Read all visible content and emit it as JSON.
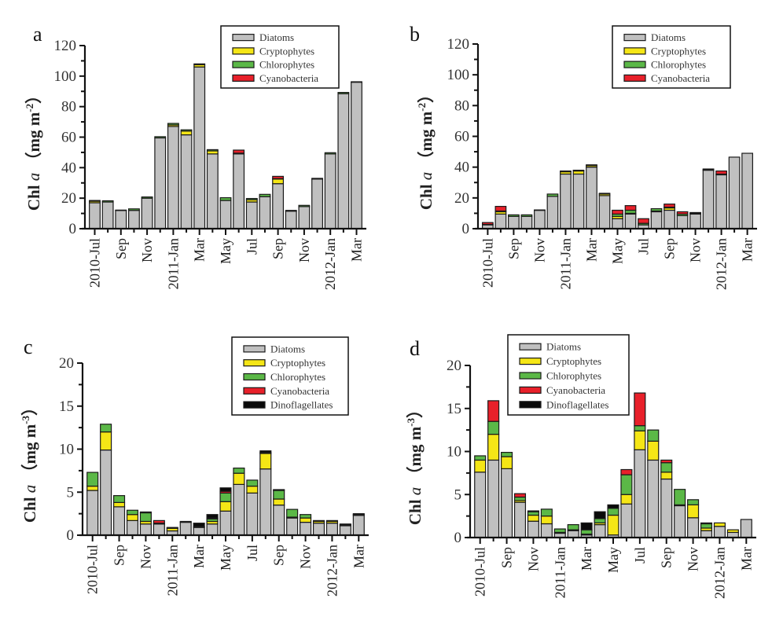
{
  "colors": {
    "Diatoms": "#c0c0c0",
    "Cryptophytes": "#f5e616",
    "Chlorophytes": "#5bb847",
    "Cyanobacteria": "#e8202a",
    "Dinoflagellates": "#0a0a0a"
  },
  "chart_data": [
    {
      "type": "bar",
      "stacked": true,
      "panel": "a",
      "ylabel": "Chl a (mg m-2)",
      "ylabel_parts": {
        "prefix": "Chl ",
        "italic": "a",
        "unit": "（mg m",
        "sup": "-2",
        "close": "）"
      },
      "ylim": [
        0,
        120
      ],
      "yticks": [
        0,
        20,
        40,
        60,
        80,
        100,
        120
      ],
      "legend_position": "top-right",
      "legend": [
        "Diatoms",
        "Cryptophytes",
        "Chlorophytes",
        "Cyanobacteria"
      ],
      "categories": [
        "2010-Jul",
        "Aug",
        "Sep",
        "Oct",
        "Nov",
        "Dec",
        "2011-Jan",
        "Feb",
        "Mar",
        "Apr",
        "May",
        "Jun",
        "Jul",
        "Aug",
        "Sep",
        "Oct",
        "Nov",
        "Dec",
        "2012-Jan",
        "Feb",
        "Mar"
      ],
      "xtick_labels": [
        "2010-Jul",
        "",
        "Sep",
        "",
        "Nov",
        "",
        "2011-Jan",
        "",
        "Mar",
        "",
        "May",
        "",
        "Jul",
        "",
        "Sep",
        "",
        "Nov",
        "",
        "2012-Jan",
        "",
        "Mar"
      ],
      "series": [
        {
          "name": "Diatoms",
          "values": [
            17,
            17.5,
            12,
            12,
            20,
            59.5,
            67,
            61.5,
            106,
            49,
            18.5,
            49,
            17.5,
            21,
            29.5,
            11.5,
            14.5,
            32.5,
            49,
            88.5,
            96
          ]
        },
        {
          "name": "Cryptophytes",
          "values": [
            1,
            0,
            0,
            0,
            0,
            0,
            1,
            2.5,
            1.5,
            2,
            0,
            0,
            1.5,
            0,
            3,
            0,
            0,
            0,
            0,
            0,
            0
          ]
        },
        {
          "name": "Chlorophytes",
          "values": [
            0.5,
            0.8,
            0.2,
            1,
            0.8,
            0.8,
            1,
            0.8,
            0.5,
            0.8,
            1.8,
            0.5,
            0.8,
            1.5,
            0.3,
            0.5,
            0.8,
            0.5,
            0.8,
            0.8,
            0.3
          ]
        },
        {
          "name": "Cyanobacteria",
          "values": [
            0,
            0,
            0,
            0,
            0,
            0,
            0,
            0,
            0,
            0,
            0,
            2,
            0,
            0,
            1.5,
            0,
            0,
            0,
            0,
            0,
            0
          ]
        }
      ]
    },
    {
      "type": "bar",
      "stacked": true,
      "panel": "b",
      "ylabel": "Chl a (mg m-2)",
      "ylabel_parts": {
        "prefix": "Chl ",
        "italic": "a",
        "unit": "（mg m",
        "sup": "-2",
        "close": "）"
      },
      "ylim": [
        0,
        120
      ],
      "yticks": [
        0,
        20,
        40,
        60,
        80,
        100,
        120
      ],
      "legend_position": "top-right",
      "legend": [
        "Diatoms",
        "Cryptophytes",
        "Chlorophytes",
        "Cyanobacteria"
      ],
      "categories": [
        "2010-Jul",
        "Aug",
        "Sep",
        "Oct",
        "Nov",
        "Dec",
        "2011-Jan",
        "Feb",
        "Mar",
        "Apr",
        "May",
        "Jun",
        "Jul",
        "Aug",
        "Sep",
        "Oct",
        "Nov",
        "Dec",
        "2012-Jan",
        "Feb",
        "Mar"
      ],
      "xtick_labels": [
        "2010-Jul",
        "",
        "Sep",
        "",
        "Nov",
        "",
        "2011-Jan",
        "",
        "Mar",
        "",
        "May",
        "",
        "Jul",
        "",
        "Sep",
        "",
        "Nov",
        "",
        "2012-Jan",
        "",
        "Mar"
      ],
      "series": [
        {
          "name": "Diatoms",
          "values": [
            2.5,
            9.5,
            8,
            8,
            12,
            21,
            35.5,
            35.5,
            40,
            21.5,
            6.5,
            9.5,
            2.5,
            11,
            12,
            8.5,
            9.5,
            38,
            35,
            46.5,
            49
          ]
        },
        {
          "name": "Cryptophytes",
          "values": [
            0,
            1.5,
            0,
            0,
            0,
            0,
            1.5,
            2,
            1,
            1,
            1.5,
            0.5,
            0,
            0.5,
            1.5,
            0,
            0,
            0,
            0,
            0,
            0
          ]
        },
        {
          "name": "Chlorophytes",
          "values": [
            0.3,
            0.5,
            1,
            1,
            0.2,
            1.5,
            0.5,
            0.5,
            0.5,
            0.5,
            1.5,
            2,
            1,
            1.5,
            0.5,
            1,
            0.5,
            0.3,
            0.5,
            0,
            0
          ]
        },
        {
          "name": "Cyanobacteria",
          "values": [
            1.2,
            3,
            0,
            0,
            0,
            0,
            0,
            0,
            0,
            0,
            2.5,
            3,
            3,
            0,
            2,
            1.5,
            0.5,
            0.5,
            2,
            0,
            0
          ]
        }
      ]
    },
    {
      "type": "bar",
      "stacked": true,
      "panel": "c",
      "ylabel": "Chl a (mg m-3)",
      "ylabel_parts": {
        "prefix": "Chl ",
        "italic": "a",
        "unit": "（mg m",
        "sup": "-3",
        "close": "）"
      },
      "ylim": [
        0,
        20
      ],
      "yticks": [
        0,
        5,
        10,
        15,
        20
      ],
      "legend_position": "top-right",
      "legend": [
        "Diatoms",
        "Cryptophytes",
        "Chlorophytes",
        "Cyanobacteria",
        "Dinoflagellates"
      ],
      "categories": [
        "2010-Jul",
        "Aug",
        "Sep",
        "Oct",
        "Nov",
        "Dec",
        "2011-Jan",
        "Feb",
        "Mar",
        "Apr",
        "May",
        "Jun",
        "Jul",
        "Aug",
        "Sep",
        "Oct",
        "Nov",
        "Dec",
        "2012-Jan",
        "Feb",
        "Mar"
      ],
      "xtick_labels": [
        "2010-Jul",
        "",
        "Sep",
        "",
        "Nov",
        "",
        "2011-Jan",
        "",
        "Mar",
        "",
        "May",
        "",
        "Jul",
        "",
        "Sep",
        "",
        "Nov",
        "",
        "2012-Jan",
        "",
        "Mar"
      ],
      "series": [
        {
          "name": "Diatoms",
          "values": [
            5.2,
            9.9,
            3.3,
            1.7,
            1.3,
            1.3,
            0.5,
            1.5,
            0.9,
            1.3,
            2.8,
            5.9,
            4.9,
            7.7,
            3.5,
            2.0,
            1.5,
            1.4,
            1.4,
            1.1,
            2.3
          ]
        },
        {
          "name": "Cryptophytes",
          "values": [
            0.5,
            2.1,
            0.5,
            0.7,
            0.3,
            0,
            0.3,
            0,
            0,
            0.3,
            1.1,
            1.3,
            0.8,
            1.8,
            0.7,
            0.1,
            0.5,
            0.2,
            0.2,
            0.1,
            0
          ]
        },
        {
          "name": "Chlorophytes",
          "values": [
            1.6,
            0.9,
            0.8,
            0.5,
            1.0,
            0.1,
            0.1,
            0.1,
            0.1,
            0.3,
            1.0,
            0.6,
            0.7,
            0.1,
            1.0,
            0.9,
            0.4,
            0.1,
            0.1,
            0.1,
            0.1
          ]
        },
        {
          "name": "Cyanobacteria",
          "values": [
            0,
            0,
            0,
            0,
            0.1,
            0.3,
            0,
            0,
            0,
            0.1,
            0.2,
            0,
            0,
            0,
            0,
            0,
            0,
            0,
            0,
            0,
            0
          ]
        },
        {
          "name": "Dinoflagellates",
          "values": [
            0,
            0,
            0,
            0,
            0,
            0,
            0,
            0,
            0.4,
            0.4,
            0.4,
            0,
            0,
            0.2,
            0.1,
            0,
            0,
            0,
            0,
            0,
            0.1
          ]
        }
      ]
    },
    {
      "type": "bar",
      "stacked": true,
      "panel": "d",
      "ylabel": "Chl a (mg m-3)",
      "ylabel_parts": {
        "prefix": "Chl ",
        "italic": "a",
        "unit": "（mg m",
        "sup": "-3",
        "close": "）"
      },
      "ylim": [
        0,
        20
      ],
      "yticks": [
        0,
        5,
        10,
        15,
        20
      ],
      "legend_position": "top-left",
      "legend": [
        "Diatoms",
        "Cryptophytes",
        "Chlorophytes",
        "Cyanobacteria",
        "Dinoflagellates"
      ],
      "categories": [
        "2010-Jul",
        "Aug",
        "Sep",
        "Oct",
        "Nov",
        "Dec",
        "2011-Jan",
        "Feb",
        "Mar",
        "Apr",
        "May",
        "Jun",
        "Jul",
        "Aug",
        "Sep",
        "Oct",
        "Nov",
        "Dec",
        "2012-Jan",
        "Feb",
        "Mar"
      ],
      "xtick_labels": [
        "2010-Jul",
        "",
        "Sep",
        "",
        "Nov",
        "",
        "2011-Jan",
        "",
        "Mar",
        "",
        "May",
        "",
        "Jul",
        "",
        "Sep",
        "",
        "Nov",
        "",
        "2012-Jan",
        "",
        "Mar"
      ],
      "series": [
        {
          "name": "Diatoms",
          "values": [
            7.6,
            9.0,
            8.0,
            4.1,
            1.9,
            1.6,
            0.5,
            0.8,
            0.3,
            1.5,
            0.3,
            3.9,
            10.2,
            9.0,
            6.8,
            3.7,
            2.3,
            0.8,
            1.3,
            0.6,
            2.1
          ]
        },
        {
          "name": "Cryptophytes",
          "values": [
            1.4,
            3.0,
            1.4,
            0.2,
            0.7,
            0.9,
            0.1,
            0.1,
            0.1,
            0.2,
            2.3,
            1.1,
            2.2,
            2.2,
            0.8,
            0.1,
            1.5,
            0.3,
            0.4,
            0.3,
            0
          ]
        },
        {
          "name": "Chlorophytes",
          "values": [
            0.5,
            1.5,
            0.5,
            0.4,
            0.4,
            0.8,
            0.4,
            0.6,
            0.5,
            0.5,
            0.8,
            2.3,
            0.6,
            1.3,
            1.1,
            1.8,
            0.6,
            0.5,
            0,
            0,
            0
          ]
        },
        {
          "name": "Cyanobacteria",
          "values": [
            0,
            2.4,
            0,
            0.4,
            0,
            0,
            0,
            0,
            0,
            0,
            0,
            0.6,
            3.8,
            0,
            0.3,
            0,
            0,
            0,
            0,
            0,
            0
          ]
        },
        {
          "name": "Dinoflagellates",
          "values": [
            0,
            0,
            0,
            0,
            0.1,
            0,
            0,
            0,
            0.8,
            0.8,
            0.4,
            0,
            0,
            0,
            0,
            0,
            0,
            0.1,
            0,
            0,
            0
          ]
        }
      ]
    }
  ]
}
